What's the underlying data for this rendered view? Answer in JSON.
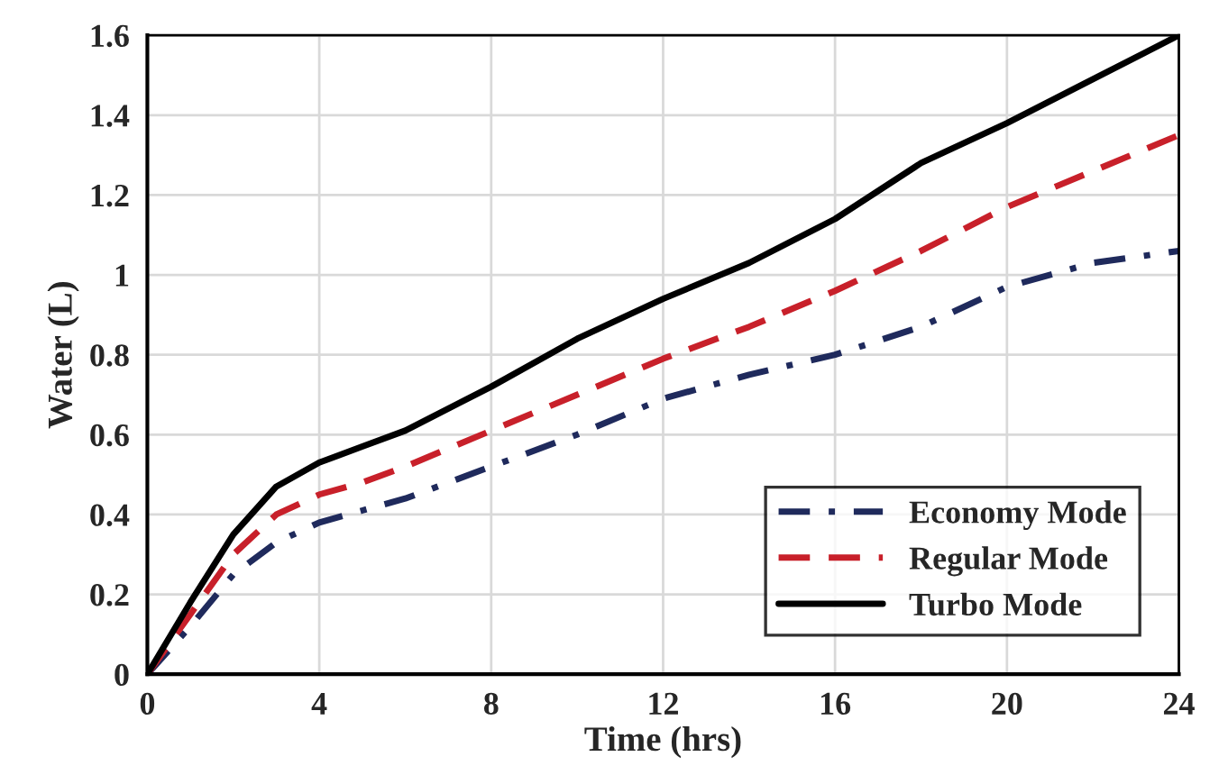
{
  "chart_data": {
    "type": "line",
    "xlabel": "Time (hrs)",
    "ylabel": "Water (L)",
    "x": [
      0,
      1,
      2,
      3,
      4,
      5,
      6,
      8,
      10,
      12,
      14,
      16,
      18,
      20,
      22,
      24
    ],
    "series": [
      {
        "name": "Economy Mode",
        "color": "#1f2a5c",
        "line_style": "dashdot",
        "values": [
          0,
          0.12,
          0.25,
          0.33,
          0.38,
          0.41,
          0.44,
          0.52,
          0.6,
          0.69,
          0.75,
          0.8,
          0.87,
          0.97,
          1.03,
          1.06
        ]
      },
      {
        "name": "Regular Mode",
        "color": "#c8202a",
        "line_style": "dashed",
        "values": [
          0,
          0.15,
          0.3,
          0.4,
          0.45,
          0.48,
          0.52,
          0.61,
          0.7,
          0.79,
          0.87,
          0.96,
          1.06,
          1.17,
          1.26,
          1.35
        ]
      },
      {
        "name": "Turbo Mode",
        "color": "#000000",
        "line_style": "solid",
        "values": [
          0,
          0.18,
          0.35,
          0.47,
          0.53,
          0.57,
          0.61,
          0.72,
          0.84,
          0.94,
          1.03,
          1.14,
          1.28,
          1.38,
          1.49,
          1.6
        ]
      }
    ],
    "xlim": [
      0,
      24
    ],
    "xticks": [
      0,
      4,
      8,
      12,
      16,
      20,
      24
    ],
    "ylim": [
      0,
      1.6
    ],
    "yticks": [
      {
        "value": 0,
        "label": "0"
      },
      {
        "value": 0.2,
        "label": "0.2"
      },
      {
        "value": 0.4,
        "label": "0.4"
      },
      {
        "value": 0.6,
        "label": "0.6"
      },
      {
        "value": 0.8,
        "label": "0.8"
      },
      {
        "value": 1,
        "label": "1"
      },
      {
        "value": 1.2,
        "label": "1.2"
      },
      {
        "value": 1.4,
        "label": "1.4"
      },
      {
        "value": 1.6,
        "label": "1.6"
      }
    ],
    "grid": true,
    "legend": "bottom right",
    "marker": "none"
  }
}
